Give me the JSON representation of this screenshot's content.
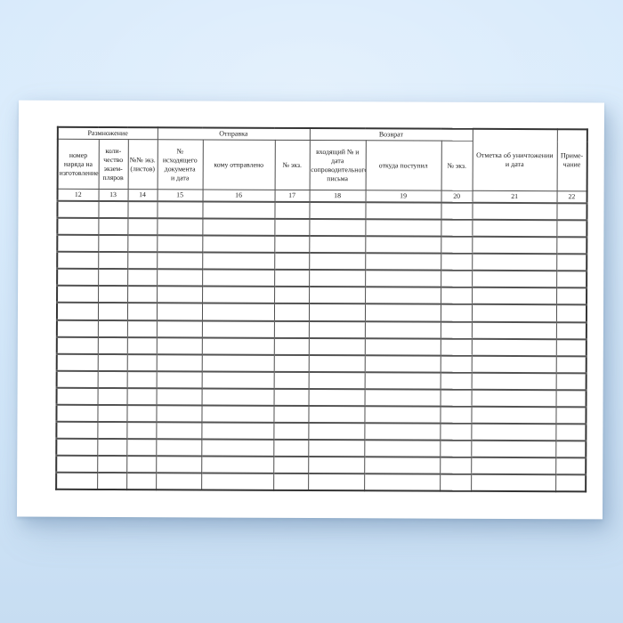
{
  "table": {
    "groups": [
      {
        "label": "Размножение"
      },
      {
        "label": "Отправка"
      },
      {
        "label": "Возврат"
      }
    ],
    "columns": [
      {
        "label": "номер\nнаряда на\nизготовление",
        "number": "12"
      },
      {
        "label": "коли-\nчество\nэкзем-\nпляров",
        "number": "13"
      },
      {
        "label": "№№ экз.\n(листов)",
        "number": "14"
      },
      {
        "label": "№\nисходящего\nдокумента\nи дата",
        "number": "15"
      },
      {
        "label": "кому отправлено",
        "number": "16"
      },
      {
        "label": "№ экз.",
        "number": "17"
      },
      {
        "label": "входящий № и дата\nсопроводительного\nписьма",
        "number": "18"
      },
      {
        "label": "откуда поступил",
        "number": "19"
      },
      {
        "label": "№ экз.",
        "number": "20"
      },
      {
        "label": "Отметка об уничтожении\nи дата",
        "number": "21"
      },
      {
        "label": "Приме-\nчание",
        "number": "22"
      }
    ],
    "empty_rows": 17,
    "colors": {
      "grid": "#4f4f4f",
      "text": "#1c1c1c",
      "paper": "#ffffff",
      "background_top": "#d8eafb",
      "background_bottom": "#c7ddf2"
    }
  }
}
